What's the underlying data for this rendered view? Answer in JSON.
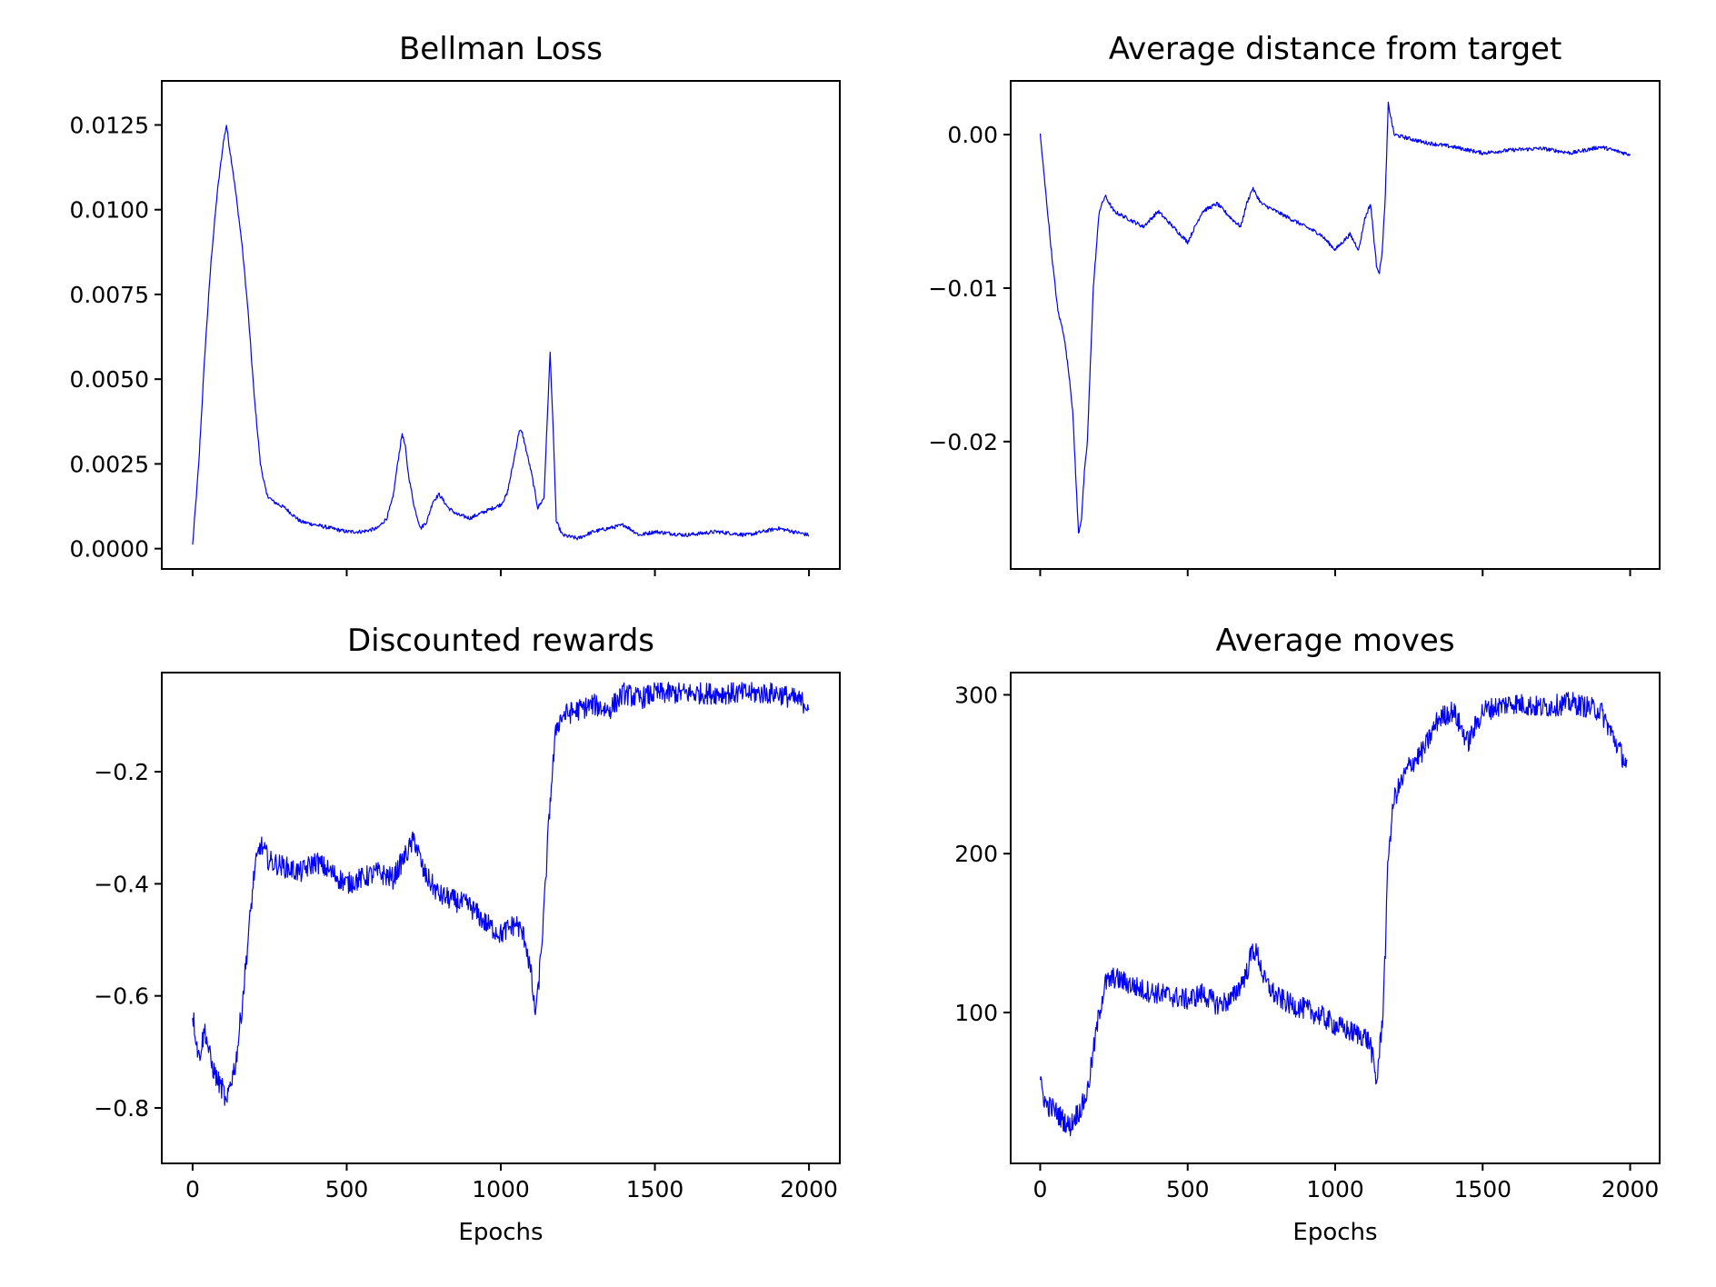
{
  "colors": {
    "line": "#0000ff",
    "axes": "#000000",
    "background": "#ffffff"
  },
  "chart_data": [
    {
      "type": "line",
      "title": "Bellman Loss",
      "xlabel": "",
      "ylabel": "",
      "xlim": [
        -100,
        2100
      ],
      "ylim": [
        -0.0006,
        0.0138
      ],
      "xticks": [
        0,
        500,
        1000,
        1500,
        2000
      ],
      "xtick_labels_visible": false,
      "yticks": [
        0.0,
        0.0025,
        0.005,
        0.0075,
        0.01,
        0.0125
      ],
      "ytick_labels": [
        "0.0000",
        "0.0025",
        "0.0050",
        "0.0075",
        "0.0100",
        "0.0125"
      ],
      "grid": false,
      "series": [
        {
          "x": [
            0,
            20,
            40,
            60,
            80,
            100,
            110,
            120,
            130,
            140,
            160,
            180,
            200,
            220,
            240,
            260,
            300,
            350,
            400,
            450,
            500,
            550,
            600,
            630,
            650,
            665,
            680,
            690,
            700,
            720,
            740,
            760,
            780,
            800,
            830,
            860,
            900,
            950,
            1000,
            1020,
            1040,
            1060,
            1070,
            1080,
            1100,
            1120,
            1140,
            1160,
            1170,
            1180,
            1200,
            1250,
            1300,
            1350,
            1400,
            1450,
            1500,
            1600,
            1700,
            1800,
            1900,
            2000
          ],
          "y": [
            0.0001,
            0.0025,
            0.0058,
            0.0085,
            0.0105,
            0.012,
            0.0125,
            0.0118,
            0.0112,
            0.0105,
            0.009,
            0.007,
            0.0045,
            0.0025,
            0.0016,
            0.0014,
            0.0012,
            0.0008,
            0.0007,
            0.0006,
            0.0005,
            0.0005,
            0.0006,
            0.0009,
            0.0015,
            0.0025,
            0.0034,
            0.003,
            0.0022,
            0.0012,
            0.0006,
            0.0008,
            0.0014,
            0.0016,
            0.0012,
            0.001,
            0.0009,
            0.0011,
            0.0013,
            0.0016,
            0.0025,
            0.0035,
            0.0034,
            0.003,
            0.0022,
            0.0012,
            0.0015,
            0.0058,
            0.0035,
            0.0008,
            0.0004,
            0.0003,
            0.0005,
            0.0006,
            0.0007,
            0.0004,
            0.0005,
            0.0004,
            0.0005,
            0.0004,
            0.0006,
            0.0004
          ]
        }
      ]
    },
    {
      "type": "line",
      "title": "Average distance from target",
      "xlabel": "",
      "ylabel": "",
      "xlim": [
        -100,
        2100
      ],
      "ylim": [
        -0.0283,
        0.0035
      ],
      "xticks": [
        0,
        500,
        1000,
        1500,
        2000
      ],
      "xtick_labels_visible": false,
      "yticks": [
        -0.02,
        -0.01,
        0.0
      ],
      "ytick_labels": [
        "−0.02",
        "−0.01",
        "0.00"
      ],
      "grid": false,
      "series": [
        {
          "x": [
            0,
            20,
            40,
            60,
            80,
            100,
            110,
            120,
            130,
            140,
            150,
            160,
            180,
            200,
            220,
            250,
            300,
            350,
            400,
            450,
            500,
            550,
            600,
            650,
            680,
            700,
            720,
            750,
            800,
            850,
            900,
            950,
            1000,
            1050,
            1080,
            1100,
            1120,
            1140,
            1150,
            1160,
            1170,
            1180,
            1200,
            1300,
            1400,
            1500,
            1600,
            1700,
            1800,
            1900,
            2000
          ],
          "y": [
            0.0,
            -0.004,
            -0.008,
            -0.0115,
            -0.013,
            -0.016,
            -0.018,
            -0.022,
            -0.026,
            -0.025,
            -0.022,
            -0.02,
            -0.01,
            -0.005,
            -0.004,
            -0.005,
            -0.0055,
            -0.006,
            -0.005,
            -0.006,
            -0.007,
            -0.005,
            -0.0045,
            -0.0055,
            -0.006,
            -0.0045,
            -0.0035,
            -0.0045,
            -0.005,
            -0.0055,
            -0.006,
            -0.0065,
            -0.0075,
            -0.0065,
            -0.0075,
            -0.0055,
            -0.0045,
            -0.0085,
            -0.009,
            -0.0075,
            -0.004,
            0.002,
            0.0,
            -0.0005,
            -0.0008,
            -0.0012,
            -0.001,
            -0.0009,
            -0.0012,
            -0.0008,
            -0.0013
          ]
        }
      ]
    },
    {
      "type": "line",
      "title": "Discounted rewards",
      "xlabel": "Epochs",
      "ylabel": "",
      "xlim": [
        -100,
        2100
      ],
      "ylim": [
        -0.899,
        -0.023
      ],
      "xticks": [
        0,
        500,
        1000,
        1500,
        2000
      ],
      "xtick_labels": [
        "0",
        "500",
        "1000",
        "1500",
        "2000"
      ],
      "yticks": [
        -0.8,
        -0.6,
        -0.4,
        -0.2
      ],
      "ytick_labels": [
        "−0.8",
        "−0.6",
        "−0.4",
        "−0.2"
      ],
      "grid": false,
      "series": [
        {
          "x": [
            0,
            20,
            40,
            60,
            80,
            100,
            110,
            120,
            140,
            160,
            180,
            200,
            220,
            250,
            300,
            350,
            400,
            450,
            500,
            550,
            600,
            650,
            700,
            720,
            750,
            800,
            850,
            900,
            950,
            1000,
            1050,
            1080,
            1100,
            1110,
            1120,
            1140,
            1160,
            1180,
            1200,
            1250,
            1300,
            1350,
            1400,
            1450,
            1500,
            1600,
            1700,
            1800,
            1900,
            2000
          ],
          "y": [
            -0.63,
            -0.71,
            -0.66,
            -0.72,
            -0.75,
            -0.77,
            -0.8,
            -0.76,
            -0.72,
            -0.62,
            -0.5,
            -0.38,
            -0.33,
            -0.36,
            -0.37,
            -0.38,
            -0.36,
            -0.38,
            -0.4,
            -0.39,
            -0.38,
            -0.39,
            -0.34,
            -0.32,
            -0.38,
            -0.42,
            -0.43,
            -0.44,
            -0.47,
            -0.49,
            -0.47,
            -0.5,
            -0.57,
            -0.63,
            -0.6,
            -0.45,
            -0.25,
            -0.12,
            -0.1,
            -0.09,
            -0.08,
            -0.09,
            -0.06,
            -0.07,
            -0.06,
            -0.06,
            -0.06,
            -0.06,
            -0.06,
            -0.08
          ]
        }
      ]
    },
    {
      "type": "line",
      "title": "Average moves",
      "xlabel": "Epochs",
      "ylabel": "",
      "xlim": [
        -100,
        2100
      ],
      "ylim": [
        5,
        314
      ],
      "xticks": [
        0,
        500,
        1000,
        1500,
        2000
      ],
      "xtick_labels": [
        "0",
        "500",
        "1000",
        "1500",
        "2000"
      ],
      "yticks": [
        100,
        200,
        300
      ],
      "ytick_labels": [
        "100",
        "200",
        "300"
      ],
      "grid": false,
      "series": [
        {
          "x": [
            0,
            20,
            40,
            60,
            80,
            100,
            120,
            140,
            160,
            180,
            200,
            220,
            250,
            300,
            350,
            400,
            450,
            500,
            550,
            600,
            650,
            700,
            720,
            740,
            760,
            800,
            850,
            900,
            950,
            1000,
            1050,
            1100,
            1120,
            1140,
            1160,
            1170,
            1180,
            1200,
            1250,
            1300,
            1350,
            1400,
            1450,
            1500,
            1600,
            1700,
            1800,
            1900,
            1990
          ],
          "y": [
            55,
            42,
            40,
            36,
            32,
            28,
            35,
            40,
            50,
            75,
            100,
            118,
            122,
            118,
            114,
            112,
            110,
            108,
            112,
            105,
            108,
            125,
            140,
            135,
            120,
            110,
            105,
            102,
            98,
            92,
            88,
            85,
            80,
            55,
            95,
            140,
            200,
            235,
            255,
            265,
            285,
            290,
            270,
            290,
            295,
            292,
            295,
            290,
            255
          ]
        }
      ]
    }
  ]
}
